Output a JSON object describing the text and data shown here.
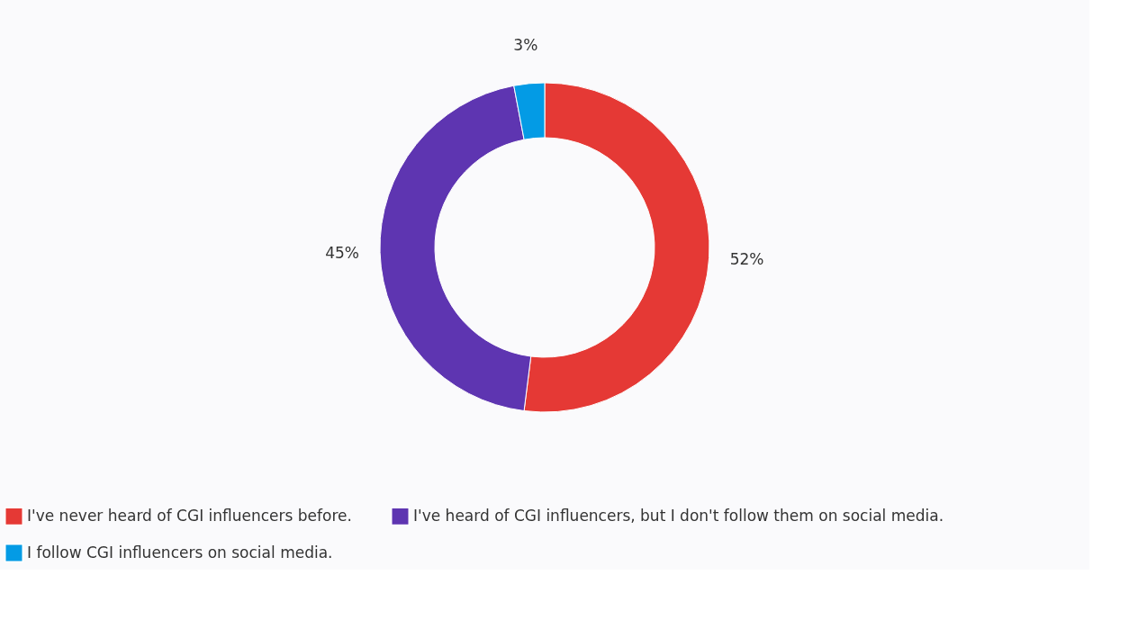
{
  "chart_data": {
    "type": "donut",
    "categories": [
      "I've never heard of CGI influencers before.",
      "I've heard of CGI influencers, but I don't follow them on social media.",
      "I follow CGI influencers on social media."
    ],
    "values": [
      52,
      45,
      3
    ],
    "colors": [
      "#e53935",
      "#5e35b1",
      "#039be5"
    ],
    "value_labels": [
      "52%",
      "45%",
      "3%"
    ],
    "legend": "bottom"
  }
}
